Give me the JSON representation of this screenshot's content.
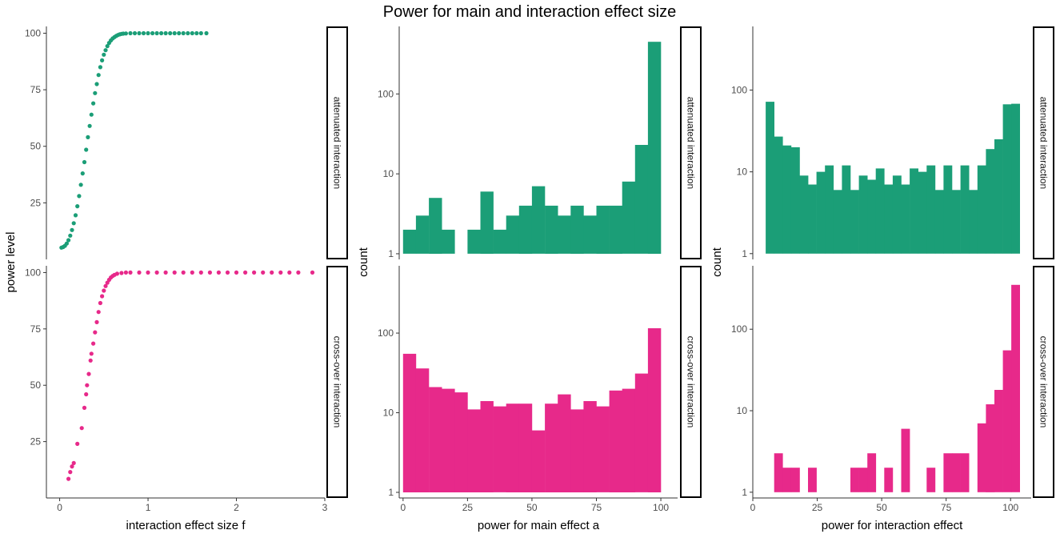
{
  "title": "Power for main and interaction effect size",
  "colors": {
    "attenuated": "#1b9e77",
    "crossover": "#e7298a"
  },
  "chart_data": [
    {
      "id": "scatter",
      "type": "scatter",
      "xlabel": "interaction effect size f",
      "ylabel": "power level",
      "xlim": [
        -0.15,
        3.0
      ],
      "xticks": [
        0,
        1,
        2,
        3
      ],
      "yticks": [
        25,
        50,
        75,
        100
      ],
      "panels": [
        {
          "facet": "attenuated interaction",
          "ylim": [
            0,
            103
          ],
          "series": [
            {
              "points": [
                [
                  0.02,
                  5.2
                ],
                [
                  0.04,
                  5.5
                ],
                [
                  0.06,
                  6
                ],
                [
                  0.08,
                  7
                ],
                [
                  0.1,
                  8.5
                ],
                [
                  0.12,
                  10.5
                ],
                [
                  0.14,
                  13
                ],
                [
                  0.16,
                  16
                ],
                [
                  0.18,
                  19.5
                ],
                [
                  0.2,
                  23.5
                ],
                [
                  0.22,
                  28
                ],
                [
                  0.24,
                  33
                ],
                [
                  0.26,
                  38
                ],
                [
                  0.28,
                  43
                ],
                [
                  0.3,
                  48.5
                ],
                [
                  0.32,
                  54
                ],
                [
                  0.34,
                  59
                ],
                [
                  0.36,
                  64
                ],
                [
                  0.38,
                  69
                ],
                [
                  0.4,
                  73.5
                ],
                [
                  0.42,
                  77.5
                ],
                [
                  0.44,
                  81.5
                ],
                [
                  0.46,
                  85
                ],
                [
                  0.48,
                  88
                ],
                [
                  0.5,
                  90.5
                ],
                [
                  0.52,
                  92.5
                ],
                [
                  0.54,
                  94.3
                ],
                [
                  0.56,
                  95.7
                ],
                [
                  0.58,
                  96.8
                ],
                [
                  0.6,
                  97.7
                ],
                [
                  0.62,
                  98.3
                ],
                [
                  0.64,
                  98.8
                ],
                [
                  0.66,
                  99.2
                ],
                [
                  0.68,
                  99.5
                ],
                [
                  0.7,
                  99.7
                ],
                [
                  0.72,
                  99.8
                ],
                [
                  0.75,
                  99.9
                ],
                [
                  0.8,
                  100
                ],
                [
                  0.85,
                  100
                ],
                [
                  0.9,
                  100
                ],
                [
                  0.95,
                  100
                ],
                [
                  1.0,
                  100
                ],
                [
                  1.05,
                  100
                ],
                [
                  1.1,
                  100
                ],
                [
                  1.15,
                  100
                ],
                [
                  1.2,
                  100
                ],
                [
                  1.25,
                  100
                ],
                [
                  1.3,
                  100
                ],
                [
                  1.35,
                  100
                ],
                [
                  1.4,
                  100
                ],
                [
                  1.45,
                  100
                ],
                [
                  1.5,
                  100
                ],
                [
                  1.55,
                  100
                ],
                [
                  1.6,
                  100
                ],
                [
                  1.66,
                  100
                ]
              ]
            }
          ]
        },
        {
          "facet": "cross-over interaction",
          "ylim": [
            0,
            103
          ],
          "series": [
            {
              "points": [
                [
                  0.1,
                  8.5
                ],
                [
                  0.12,
                  11.5
                ],
                [
                  0.14,
                  14
                ],
                [
                  0.16,
                  15.5
                ],
                [
                  0.2,
                  24
                ],
                [
                  0.25,
                  31
                ],
                [
                  0.28,
                  40
                ],
                [
                  0.3,
                  46
                ],
                [
                  0.31,
                  50
                ],
                [
                  0.33,
                  55
                ],
                [
                  0.35,
                  61
                ],
                [
                  0.36,
                  64
                ],
                [
                  0.38,
                  68.5
                ],
                [
                  0.4,
                  73.5
                ],
                [
                  0.42,
                  78
                ],
                [
                  0.44,
                  82.5
                ],
                [
                  0.46,
                  86.5
                ],
                [
                  0.48,
                  89.5
                ],
                [
                  0.5,
                  92
                ],
                [
                  0.52,
                  94
                ],
                [
                  0.54,
                  95.5
                ],
                [
                  0.56,
                  96.8
                ],
                [
                  0.58,
                  97.8
                ],
                [
                  0.6,
                  98.5
                ],
                [
                  0.62,
                  99
                ],
                [
                  0.65,
                  99.5
                ],
                [
                  0.7,
                  99.8
                ],
                [
                  0.75,
                  100
                ],
                [
                  0.8,
                  100
                ],
                [
                  0.9,
                  100
                ],
                [
                  1.0,
                  100
                ],
                [
                  1.1,
                  100
                ],
                [
                  1.2,
                  100
                ],
                [
                  1.3,
                  100
                ],
                [
                  1.4,
                  100
                ],
                [
                  1.5,
                  100
                ],
                [
                  1.6,
                  100
                ],
                [
                  1.7,
                  100
                ],
                [
                  1.8,
                  100
                ],
                [
                  1.9,
                  100
                ],
                [
                  2.0,
                  100
                ],
                [
                  2.1,
                  100
                ],
                [
                  2.2,
                  100
                ],
                [
                  2.3,
                  100
                ],
                [
                  2.4,
                  100
                ],
                [
                  2.5,
                  100
                ],
                [
                  2.6,
                  100
                ],
                [
                  2.7,
                  100
                ],
                [
                  2.86,
                  100
                ]
              ]
            }
          ]
        }
      ]
    },
    {
      "id": "hist-main",
      "type": "bar",
      "xlabel": "power for main effect a",
      "ylabel": "count",
      "xlim": [
        -1.5,
        106.5
      ],
      "xticks": [
        0,
        25,
        50,
        75,
        100
      ],
      "yscale": "log",
      "yticks": [
        1,
        10,
        100
      ],
      "binwidth": 5,
      "panels": [
        {
          "facet": "attenuated interaction",
          "ylim": [
            0.85,
            700
          ],
          "bins": [
            [
              2.5,
              2
            ],
            [
              7.5,
              3
            ],
            [
              12.5,
              5
            ],
            [
              17.5,
              2
            ],
            [
              22.5,
              0
            ],
            [
              27.5,
              2
            ],
            [
              32.5,
              6
            ],
            [
              37.5,
              2
            ],
            [
              42.5,
              3
            ],
            [
              47.5,
              4
            ],
            [
              52.5,
              7
            ],
            [
              57.5,
              4
            ],
            [
              62.5,
              3
            ],
            [
              67.5,
              4
            ],
            [
              72.5,
              3
            ],
            [
              77.5,
              4
            ],
            [
              82.5,
              4
            ],
            [
              87.5,
              8
            ],
            [
              92.5,
              23
            ],
            [
              97.5,
              450
            ]
          ]
        },
        {
          "facet": "cross-over interaction",
          "ylim": [
            0.85,
            700
          ],
          "bins": [
            [
              2.5,
              55
            ],
            [
              7.5,
              36
            ],
            [
              12.5,
              21
            ],
            [
              17.5,
              20
            ],
            [
              22.5,
              18
            ],
            [
              27.5,
              11
            ],
            [
              32.5,
              14
            ],
            [
              37.5,
              12
            ],
            [
              42.5,
              13
            ],
            [
              47.5,
              13
            ],
            [
              52.5,
              6
            ],
            [
              57.5,
              13
            ],
            [
              62.5,
              17
            ],
            [
              67.5,
              11
            ],
            [
              72.5,
              14
            ],
            [
              77.5,
              12
            ],
            [
              82.5,
              19
            ],
            [
              87.5,
              20
            ],
            [
              92.5,
              31
            ],
            [
              97.5,
              115
            ]
          ]
        }
      ]
    },
    {
      "id": "hist-int",
      "type": "bar",
      "xlabel": "power for interaction effect",
      "ylabel": "count",
      "xlim": [
        0,
        108
      ],
      "xticks": [
        0,
        25,
        50,
        75,
        100
      ],
      "yscale": "log",
      "yticks": [
        1,
        10,
        100
      ],
      "binwidth": 3.286,
      "panels": [
        {
          "facet": "attenuated interaction",
          "ylim": [
            0.85,
            600
          ],
          "bins": [
            [
              6.643,
              72
            ],
            [
              9.929,
              27
            ],
            [
              13.214,
              21
            ],
            [
              16.5,
              20
            ],
            [
              19.786,
              9
            ],
            [
              23.071,
              7
            ],
            [
              26.357,
              10
            ],
            [
              29.643,
              12
            ],
            [
              32.929,
              6
            ],
            [
              36.214,
              12
            ],
            [
              39.5,
              6
            ],
            [
              42.786,
              9
            ],
            [
              46.071,
              8
            ],
            [
              49.357,
              11
            ],
            [
              52.643,
              7
            ],
            [
              55.929,
              9
            ],
            [
              59.214,
              7
            ],
            [
              62.5,
              11
            ],
            [
              65.786,
              10
            ],
            [
              69.071,
              12
            ],
            [
              72.357,
              6
            ],
            [
              75.643,
              12
            ],
            [
              78.929,
              6
            ],
            [
              82.214,
              12
            ],
            [
              85.5,
              6
            ],
            [
              88.786,
              12
            ],
            [
              92.071,
              19
            ],
            [
              95.357,
              25
            ],
            [
              98.643,
              67
            ],
            [
              101.929,
              68
            ]
          ]
        },
        {
          "facet": "cross-over interaction",
          "ylim": [
            0.85,
            600
          ],
          "bins": [
            [
              6.643,
              1
            ],
            [
              9.929,
              3
            ],
            [
              13.214,
              2
            ],
            [
              16.5,
              2
            ],
            [
              19.786,
              0
            ],
            [
              23.071,
              2
            ],
            [
              26.357,
              0
            ],
            [
              29.643,
              0
            ],
            [
              32.929,
              0
            ],
            [
              36.214,
              0
            ],
            [
              39.5,
              2
            ],
            [
              42.786,
              2
            ],
            [
              46.071,
              3
            ],
            [
              49.357,
              1
            ],
            [
              52.643,
              2
            ],
            [
              55.929,
              1
            ],
            [
              59.214,
              6
            ],
            [
              62.5,
              1
            ],
            [
              65.786,
              1
            ],
            [
              69.071,
              2
            ],
            [
              72.357,
              1
            ],
            [
              75.643,
              3
            ],
            [
              78.929,
              3
            ],
            [
              82.214,
              3
            ],
            [
              85.5,
              1
            ],
            [
              88.786,
              7
            ],
            [
              92.071,
              12
            ],
            [
              95.357,
              18
            ],
            [
              98.643,
              55
            ],
            [
              101.929,
              350
            ]
          ]
        }
      ]
    }
  ]
}
